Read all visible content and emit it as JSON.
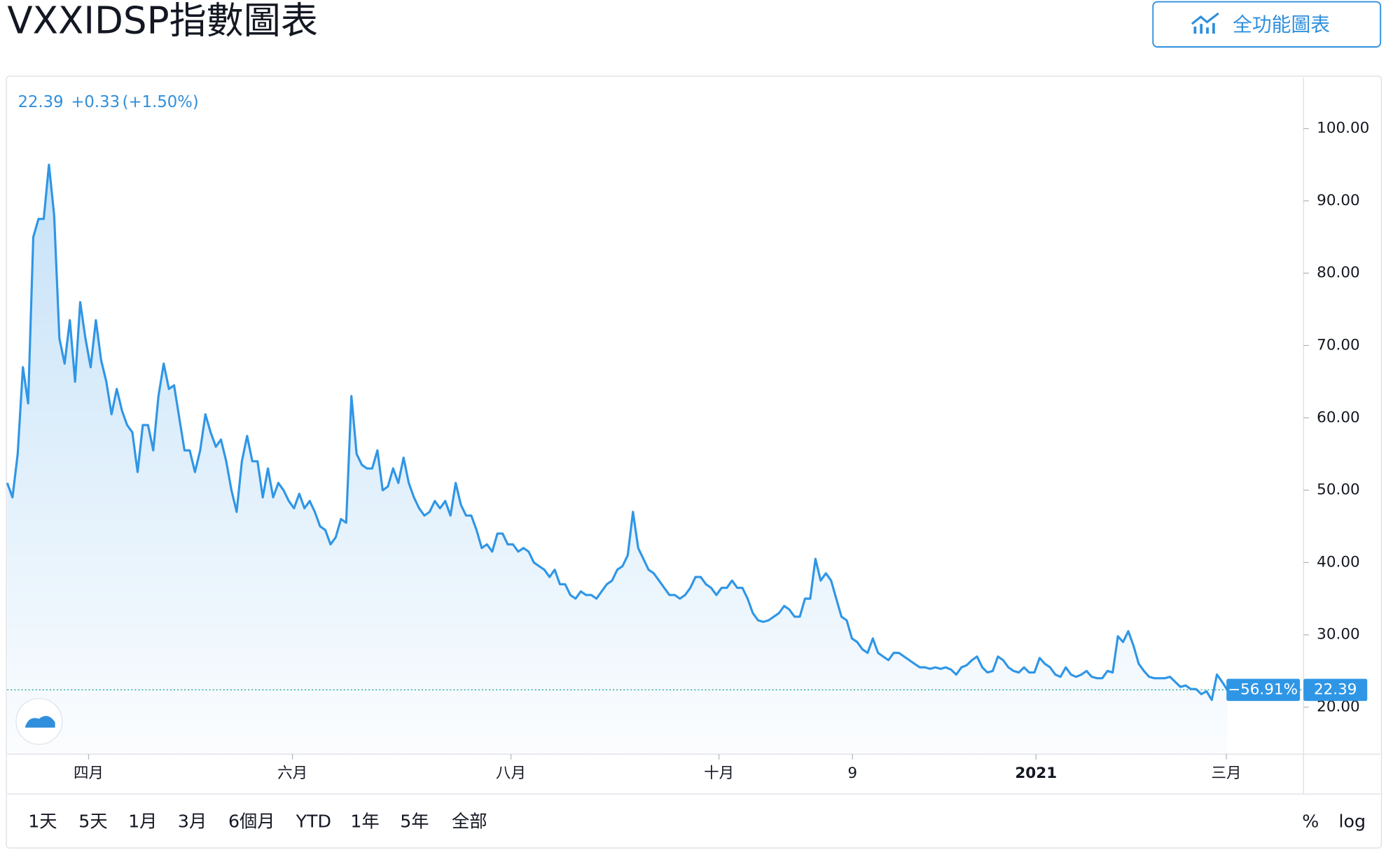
{
  "header": {
    "title": "VXXIDSP指數圖表",
    "button": "全功能圖表"
  },
  "quote": {
    "last": "22.39",
    "change": "+0.33",
    "change_percent": "(+1.50%)",
    "badge_percent": "−56.91%",
    "badge_price": "22.39"
  },
  "chart_data": {
    "type": "line",
    "color": "#2f96e6",
    "values": [
      51,
      49,
      55,
      67,
      62,
      85,
      87.5,
      87.5,
      95,
      88,
      71,
      67.5,
      73.5,
      65,
      76,
      71,
      67,
      73.5,
      68,
      65,
      60.5,
      64,
      61,
      59,
      58,
      52.5,
      59,
      59,
      55.5,
      63,
      67.5,
      64,
      64.5,
      60,
      55.5,
      55.5,
      52.5,
      55.5,
      60.5,
      58,
      56,
      57,
      54,
      50,
      47,
      54,
      57.5,
      54,
      54,
      49,
      53,
      49,
      51,
      50,
      48.5,
      47.5,
      49.5,
      47.5,
      48.5,
      47,
      45,
      44.5,
      42.5,
      43.5,
      46,
      45.5,
      63,
      55,
      53.5,
      53,
      53,
      55.5,
      50,
      50.5,
      53,
      51,
      54.5,
      51,
      49,
      47.5,
      46.5,
      47,
      48.5,
      47.5,
      48.5,
      46.5,
      51,
      48,
      46.5,
      46.5,
      44.5,
      42,
      42.5,
      41.5,
      44,
      44,
      42.5,
      42.5,
      41.5,
      42,
      41.5,
      40,
      39.5,
      39,
      38,
      39,
      37,
      37,
      35.5,
      35,
      36,
      35.5,
      35.5,
      35,
      36,
      37,
      37.5,
      39,
      39.5,
      41,
      47,
      42,
      40.5,
      39,
      38.5,
      37.5,
      36.5,
      35.5,
      35.5,
      35,
      35.5,
      36.5,
      38,
      38,
      37,
      36.5,
      35.5,
      36.5,
      36.5,
      37.5,
      36.5,
      36.5,
      35,
      33,
      32,
      31.8,
      32,
      32.5,
      33,
      34,
      33.5,
      32.5,
      32.5,
      35,
      35,
      40.5,
      37.5,
      38.5,
      37.5,
      35,
      32.5,
      32,
      29.5,
      29,
      28,
      27.5,
      29.5,
      27.5,
      27,
      26.5,
      27.5,
      27.5,
      27,
      26.5,
      26,
      25.5,
      25.5,
      25.3,
      25.5,
      25.3,
      25.5,
      25.2,
      24.5,
      25.5,
      25.8,
      26.5,
      27,
      25.5,
      24.8,
      25,
      27,
      26.5,
      25.5,
      25,
      24.8,
      25.5,
      24.8,
      24.8,
      26.8,
      26,
      25.5,
      24.5,
      24.2,
      25.5,
      24.5,
      24.2,
      24.5,
      25,
      24.2,
      24,
      24,
      25,
      24.8,
      29.8,
      29,
      30.5,
      28.5,
      26,
      25,
      24.2,
      24,
      24,
      24,
      24.2,
      23.5,
      22.8,
      23,
      22.5,
      22.5,
      21.8,
      22.2,
      21,
      24.5,
      23.5,
      22.39
    ],
    "xlim": [
      0,
      248.6
    ],
    "xticks": [
      {
        "value": 15.6,
        "label": "四月"
      },
      {
        "value": 54.7,
        "label": "六月"
      },
      {
        "value": 96.6,
        "label": "八月"
      },
      {
        "value": 136.5,
        "label": "十月"
      },
      {
        "value": 162.1,
        "label": "9"
      },
      {
        "value": 197.3,
        "label": "2021"
      },
      {
        "value": 233.8,
        "label": "三月"
      }
    ],
    "ylim": [
      13.5,
      107
    ],
    "yticks": [
      {
        "value": 20,
        "label": "20.00"
      },
      {
        "value": 30,
        "label": "30.00"
      },
      {
        "value": 40,
        "label": "40.00"
      },
      {
        "value": 50,
        "label": "50.00"
      },
      {
        "value": 60,
        "label": "60.00"
      },
      {
        "value": 70,
        "label": "70.00"
      },
      {
        "value": 80,
        "label": "80.00"
      },
      {
        "value": 90,
        "label": "90.00"
      },
      {
        "value": 100,
        "label": "100.00"
      }
    ]
  },
  "toolbar": {
    "ranges": [
      "1天",
      "5天",
      "1月",
      "3月",
      "6個月",
      "YTD",
      "1年",
      "5年",
      "全部"
    ],
    "right": [
      "%",
      "log"
    ]
  }
}
